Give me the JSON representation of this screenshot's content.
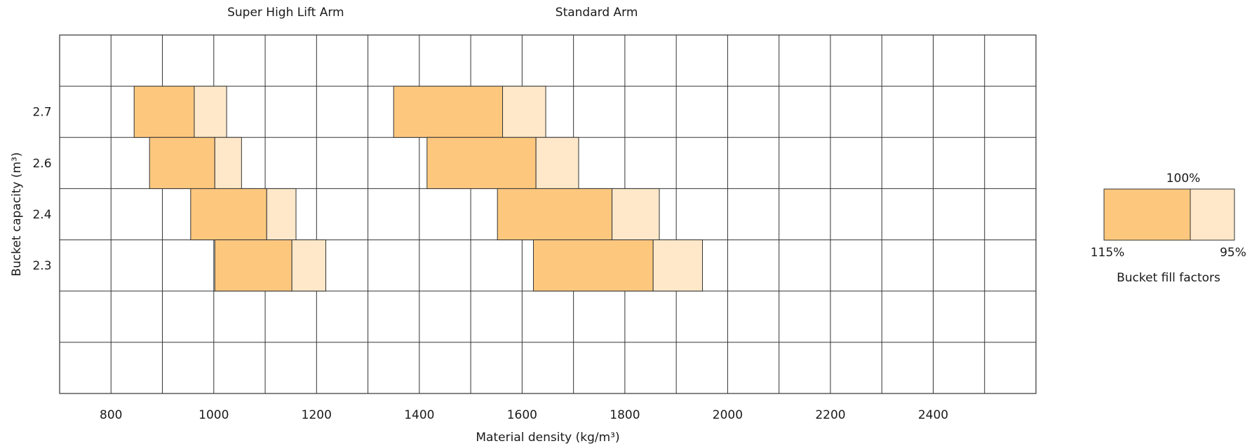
{
  "chart_data": {
    "type": "bar",
    "orientation": "horizontal-range",
    "xlabel": "Material density (kg/m³)",
    "ylabel": "Bucket capacity (m³)",
    "xlim": [
      700,
      2600
    ],
    "x_ticks": [
      800,
      1000,
      1200,
      1400,
      1600,
      1800,
      2000,
      2200,
      2400
    ],
    "x_tick_labels": [
      "800",
      "1000",
      "1200",
      "1400",
      "1600",
      "1800",
      "2000",
      "2200",
      "2400"
    ],
    "y_rows": 7,
    "categories": [
      "2.7",
      "2.6",
      "2.4",
      "2.3"
    ],
    "category_rows": [
      1,
      2,
      3,
      4
    ],
    "groups": [
      {
        "name": "Super High Lift Arm",
        "label_center_x": 1140,
        "bars": [
          {
            "capacity": "2.7",
            "fill_115": 845,
            "fill_100": 962,
            "fill_95": 1025
          },
          {
            "capacity": "2.6",
            "fill_115": 875,
            "fill_100": 1002,
            "fill_95": 1054
          },
          {
            "capacity": "2.4",
            "fill_115": 955,
            "fill_100": 1103,
            "fill_95": 1160
          },
          {
            "capacity": "2.3",
            "fill_115": 1002,
            "fill_100": 1152,
            "fill_95": 1218
          }
        ]
      },
      {
        "name": "Standard Arm",
        "label_center_x": 1745,
        "bars": [
          {
            "capacity": "2.7",
            "fill_115": 1350,
            "fill_100": 1562,
            "fill_95": 1646
          },
          {
            "capacity": "2.6",
            "fill_115": 1415,
            "fill_100": 1627,
            "fill_95": 1710
          },
          {
            "capacity": "2.4",
            "fill_115": 1552,
            "fill_100": 1775,
            "fill_95": 1867
          },
          {
            "capacity": "2.3",
            "fill_115": 1622,
            "fill_100": 1855,
            "fill_95": 1951
          }
        ]
      }
    ],
    "legend": {
      "title": "Bucket fill factors",
      "label_115": "115%",
      "label_100": "100%",
      "label_95": "95%",
      "placement": "right"
    },
    "colors": {
      "seg_115_to_100": "#fdc87e",
      "seg_100_to_95": "#fee8c9",
      "grid": "#333333"
    },
    "grid": true
  }
}
